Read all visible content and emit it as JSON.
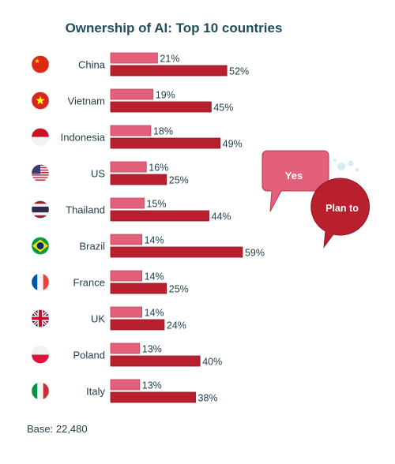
{
  "chart_data": {
    "type": "bar",
    "orientation": "horizontal",
    "title": "Ownership of AI: Top 10 countries",
    "categories": [
      "China",
      "Vietnam",
      "Indonesia",
      "US",
      "Thailand",
      "Brazil",
      "France",
      "UK",
      "Poland",
      "Italy"
    ],
    "series": [
      {
        "name": "Yes",
        "values": [
          21,
          19,
          18,
          16,
          15,
          14,
          14,
          14,
          13,
          13
        ],
        "color": "#e2607a"
      },
      {
        "name": "Plan to",
        "values": [
          52,
          45,
          49,
          25,
          44,
          59,
          25,
          24,
          40,
          38
        ],
        "color": "#b8202e"
      }
    ],
    "value_suffix": "%",
    "flag_icons": [
      "china-flag-icon",
      "vietnam-flag-icon",
      "indonesia-flag-icon",
      "us-flag-icon",
      "thailand-flag-icon",
      "brazil-flag-icon",
      "france-flag-icon",
      "uk-flag-icon",
      "poland-flag-icon",
      "italy-flag-icon"
    ],
    "legend_placement": "right",
    "grid": false,
    "base_note": "Base: 22,480"
  }
}
